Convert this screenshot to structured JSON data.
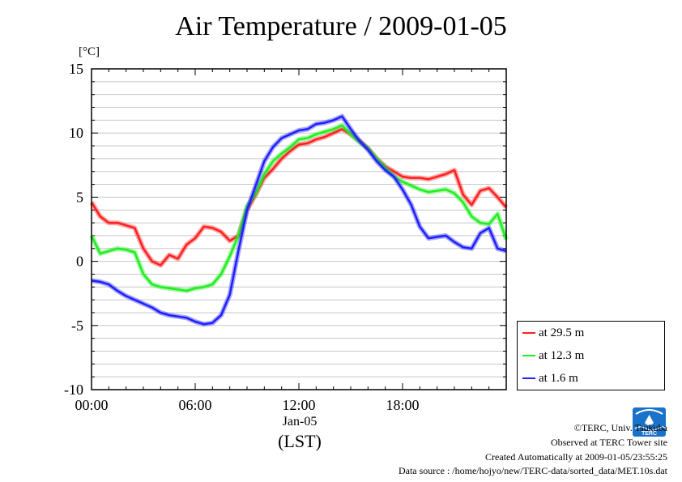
{
  "header": {
    "title": "Air Temperature / 2009-01-05",
    "unit": "[°C]"
  },
  "chart_data": {
    "type": "line",
    "title": "Air Temperature / 2009-01-05",
    "ylabel": "[°C]",
    "xlabel": "(LST)",
    "x_date_label": "Jan-05",
    "x_range_hours": [
      0,
      24
    ],
    "ylim": [
      -10,
      15
    ],
    "yticks": [
      "15",
      "10",
      "5",
      "0",
      "-5",
      "-10"
    ],
    "xticks": [
      {
        "hour": 0,
        "label": "00:00"
      },
      {
        "hour": 6,
        "label": "06:00"
      },
      {
        "hour": 12,
        "label": "12:00"
      },
      {
        "hour": 18,
        "label": "18:00"
      }
    ],
    "grid": true,
    "legend_position": "bottom-right",
    "x": [
      0,
      0.5,
      1,
      1.5,
      2,
      2.5,
      3,
      3.5,
      4,
      4.5,
      5,
      5.5,
      6,
      6.5,
      7,
      7.5,
      8,
      8.5,
      9,
      9.5,
      10,
      10.5,
      11,
      11.5,
      12,
      12.5,
      13,
      13.5,
      14,
      14.5,
      15,
      15.5,
      16,
      16.5,
      17,
      17.5,
      18,
      18.5,
      19,
      19.5,
      20,
      20.5,
      21,
      21.5,
      22,
      22.5,
      23,
      23.5,
      24
    ],
    "series": [
      {
        "name": "at 29.5 m",
        "color": "#ff2020",
        "values": [
          4.6,
          3.5,
          3.0,
          3.0,
          2.8,
          2.6,
          1.0,
          0.0,
          -0.3,
          0.5,
          0.2,
          1.3,
          1.8,
          2.7,
          2.6,
          2.3,
          1.6,
          2.0,
          4.0,
          5.2,
          6.5,
          7.2,
          8.0,
          8.6,
          9.1,
          9.2,
          9.5,
          9.7,
          10.0,
          10.3,
          9.9,
          9.4,
          8.8,
          8.0,
          7.4,
          7.0,
          6.6,
          6.5,
          6.5,
          6.4,
          6.6,
          6.8,
          7.1,
          5.2,
          4.4,
          5.5,
          5.7,
          5.0,
          4.2
        ]
      },
      {
        "name": "at 12.3 m",
        "color": "#20ee20",
        "values": [
          2.0,
          0.6,
          0.8,
          1.0,
          0.9,
          0.7,
          -1.0,
          -1.8,
          -2.0,
          -2.1,
          -2.2,
          -2.3,
          -2.1,
          -2.0,
          -1.8,
          -1.0,
          0.4,
          2.0,
          4.3,
          5.3,
          6.8,
          7.8,
          8.4,
          8.9,
          9.5,
          9.6,
          9.9,
          10.1,
          10.3,
          10.6,
          9.9,
          9.3,
          8.8,
          8.0,
          7.3,
          6.6,
          6.2,
          5.9,
          5.6,
          5.4,
          5.5,
          5.6,
          5.3,
          4.6,
          3.5,
          3.0,
          2.9,
          3.7,
          1.7
        ]
      },
      {
        "name": "at 1.6 m",
        "color": "#2020ff",
        "values": [
          -1.5,
          -1.6,
          -1.8,
          -2.3,
          -2.7,
          -3.0,
          -3.3,
          -3.6,
          -4.0,
          -4.2,
          -4.3,
          -4.4,
          -4.7,
          -4.9,
          -4.8,
          -4.2,
          -2.6,
          0.8,
          4.0,
          5.9,
          7.8,
          8.9,
          9.6,
          9.9,
          10.2,
          10.3,
          10.7,
          10.8,
          11.0,
          11.3,
          10.3,
          9.4,
          8.7,
          7.8,
          7.1,
          6.6,
          5.6,
          4.4,
          2.7,
          1.8,
          1.9,
          2.0,
          1.5,
          1.1,
          1.0,
          2.2,
          2.6,
          1.0,
          0.8
        ]
      }
    ]
  },
  "axis": {
    "date_label": "Jan-05",
    "lst_label": "(LST)"
  },
  "credits": {
    "copyright": "©TERC, Univ. Tsukuba",
    "site": "Observed at TERC Tower site",
    "created": "Created Automatically at 2009-01-05/23:55:25",
    "source": "Data source : /home/hojyo/new/TERC-data/sorted_data/MET.10s.dat",
    "logo_text": "TERC"
  }
}
